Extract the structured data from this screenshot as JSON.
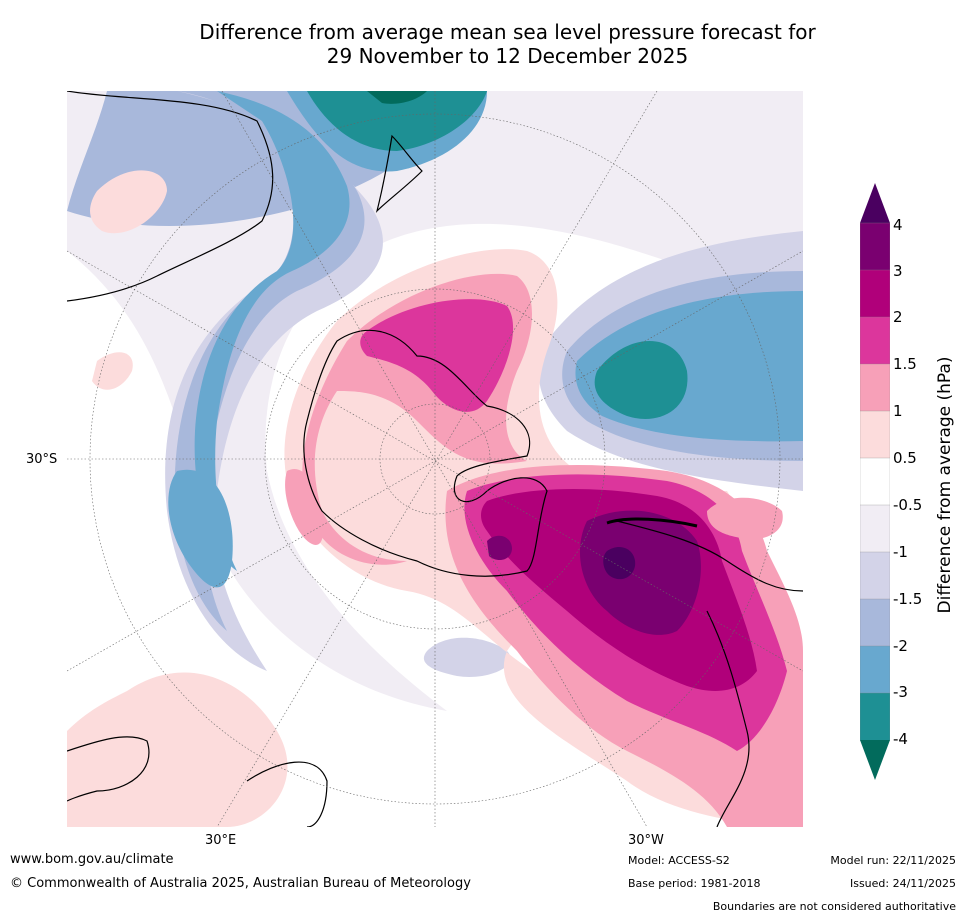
{
  "title": {
    "line1": "Difference from average mean sea level pressure forecast for",
    "line2": "29 November to 12 December 2025"
  },
  "map": {
    "projection": "south-polar-stereographic",
    "lat_label": "30°S",
    "lon_labels": [
      "30°E",
      "30°W"
    ],
    "anomaly_regions": [
      {
        "name": "tasman-sea-low",
        "value_hpa": -3,
        "location": "near New Zealand"
      },
      {
        "name": "south-pacific-low",
        "value_hpa": -3,
        "location": "east Pacific"
      },
      {
        "name": "indian-ocean-low",
        "value_hpa": -2,
        "location": "south Indian Ocean"
      },
      {
        "name": "antarctic-high",
        "value_hpa": 2,
        "location": "Ross/Amundsen Sea"
      },
      {
        "name": "drake-passage-high",
        "value_hpa": 4,
        "location": "Weddell Sea / Drake Passage"
      }
    ]
  },
  "colorbar": {
    "label": "Difference from average (hPa)",
    "ticks": [
      "4",
      "3",
      "2",
      "1.5",
      "1",
      "0.5",
      "-0.5",
      "-1",
      "-1.5",
      "-2",
      "-3",
      "-4"
    ],
    "colors": [
      "#4a0060",
      "#7a0070",
      "#b0007a",
      "#dc369c",
      "#f7a0b8",
      "#fcdcdc",
      "#ffffff",
      "#f1edf4",
      "#d3d3e8",
      "#a8b8db",
      "#68a8cf",
      "#1e9094",
      "#026b5c"
    ]
  },
  "footer": {
    "website": "www.bom.gov.au/climate",
    "copyright": "© Commonwealth of Australia 2025, Australian Bureau of Meteorology",
    "model": "Model: ACCESS-S2",
    "base_period": "Base period: 1981-2018",
    "model_run": "Model run: 22/11/2025",
    "issued": "Issued: 24/11/2025",
    "disclaimer": "Boundaries are not considered authoritative"
  }
}
